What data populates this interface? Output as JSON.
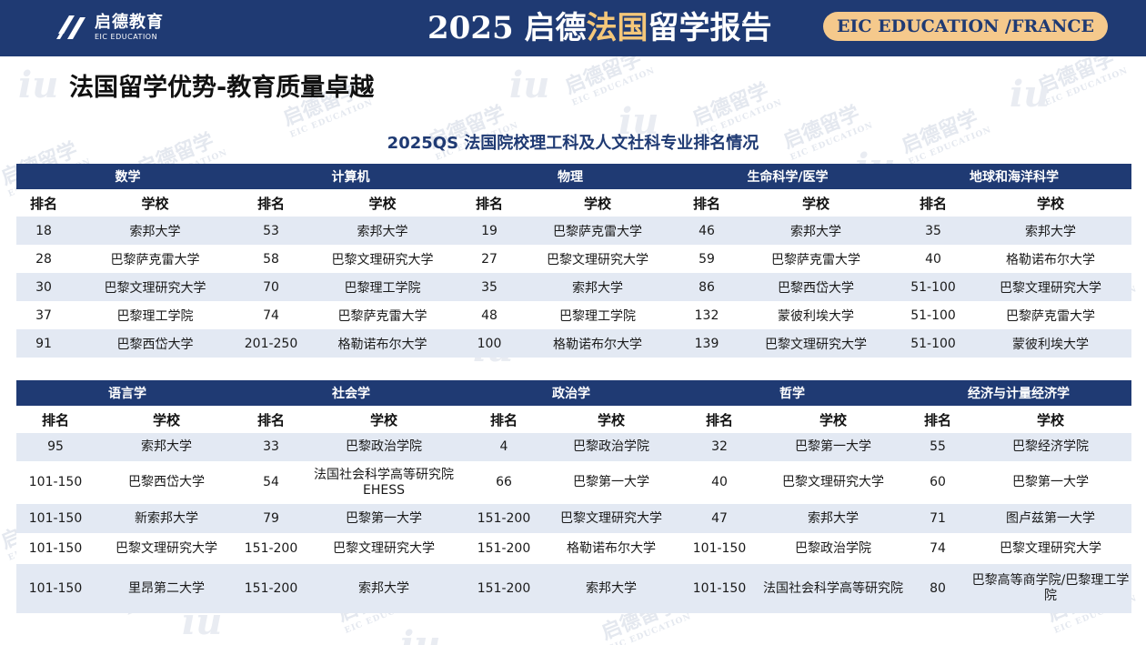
{
  "header": {
    "logo_cn": "启德教育",
    "logo_en": "EIC EDUCATION",
    "title_year": "2025",
    "title_brand": "启德",
    "title_accent": "法国",
    "title_rest": "留学报告",
    "pill": "EIC EDUCATION /FRANCE"
  },
  "page_title": "法国留学优势-教育质量卓越",
  "table_title": "2025QS 法国院校理工科及人文社科专业排名情况",
  "watermark": {
    "cn": "启德留学",
    "en": "EIC EDUCATION",
    "mark": "iu"
  },
  "col_labels": {
    "rank": "排名",
    "school": "学校"
  },
  "table1": {
    "subjects": [
      "数学",
      "计算机",
      "物理",
      "生命科学/医学",
      "地球和海洋科学"
    ],
    "rows": [
      [
        "18",
        "索邦大学",
        "53",
        "索邦大学",
        "19",
        "巴黎萨克雷大学",
        "46",
        "索邦大学",
        "35",
        "索邦大学"
      ],
      [
        "28",
        "巴黎萨克雷大学",
        "58",
        "巴黎文理研究大学",
        "27",
        "巴黎文理研究大学",
        "59",
        "巴黎萨克雷大学",
        "40",
        "格勒诺布尔大学"
      ],
      [
        "30",
        "巴黎文理研究大学",
        "70",
        "巴黎理工学院",
        "35",
        "索邦大学",
        "86",
        "巴黎西岱大学",
        "51-100",
        "巴黎文理研究大学"
      ],
      [
        "37",
        "巴黎理工学院",
        "74",
        "巴黎萨克雷大学",
        "48",
        "巴黎理工学院",
        "132",
        "蒙彼利埃大学",
        "51-100",
        "巴黎萨克雷大学"
      ],
      [
        "91",
        "巴黎西岱大学",
        "201-250",
        "格勒诺布尔大学",
        "100",
        "格勒诺布尔大学",
        "139",
        "巴黎文理研究大学",
        "51-100",
        "蒙彼利埃大学"
      ]
    ]
  },
  "table2": {
    "subjects": [
      "语言学",
      "社会学",
      "政治学",
      "哲学",
      "经济与计量经济学"
    ],
    "rows": [
      [
        "95",
        "索邦大学",
        "33",
        "巴黎政治学院",
        "4",
        "巴黎政治学院",
        "32",
        "巴黎第一大学",
        "55",
        "巴黎经济学院"
      ],
      [
        "101-150",
        "巴黎西岱大学",
        "54",
        "法国社会科学高等研究院EHESS",
        "66",
        "巴黎第一大学",
        "40",
        "巴黎文理研究大学",
        "60",
        "巴黎第一大学"
      ],
      [
        "101-150",
        "新索邦大学",
        "79",
        "巴黎第一大学",
        "151-200",
        "巴黎文理研究大学",
        "47",
        "索邦大学",
        "71",
        "图卢兹第一大学"
      ],
      [
        "101-150",
        "巴黎文理研究大学",
        "151-200",
        "巴黎文理研究大学",
        "151-200",
        "格勒诺布尔大学",
        "101-150",
        "巴黎政治学院",
        "74",
        "巴黎文理研究大学"
      ],
      [
        "101-150",
        "里昂第二大学",
        "151-200",
        "索邦大学",
        "151-200",
        "索邦大学",
        "101-150",
        "法国社会科学高等研究院",
        "80",
        "巴黎高等商学院/巴黎理工学院"
      ]
    ]
  },
  "colors": {
    "navy": "#1f3a73",
    "stripe": "#e3e9f3",
    "gold": "#f4c77a",
    "pill": "#f5c98c"
  }
}
